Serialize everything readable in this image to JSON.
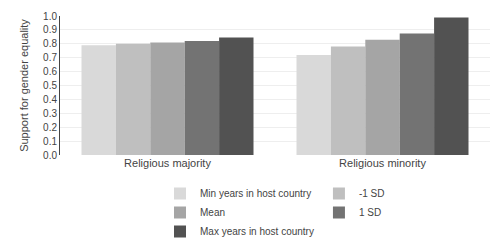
{
  "chart_data": {
    "type": "bar",
    "categories": [
      "Religious majority",
      "Religious minority"
    ],
    "series": [
      {
        "name": "Min years in host country",
        "color": "#d9d9d9",
        "values": [
          0.79,
          0.72
        ]
      },
      {
        "name": "-1 SD",
        "color": "#bfbfbf",
        "values": [
          0.8,
          0.78
        ]
      },
      {
        "name": "Mean",
        "color": "#a5a5a5",
        "values": [
          0.81,
          0.83
        ]
      },
      {
        "name": "1 SD",
        "color": "#737373",
        "values": [
          0.82,
          0.875
        ]
      },
      {
        "name": "Max years in host country",
        "color": "#525252",
        "values": [
          0.845,
          0.99
        ]
      }
    ],
    "ylabel": "Support for gender equality",
    "ylim": [
      0.0,
      1.0
    ],
    "yticks": [
      {
        "value": 0.0,
        "label": "0.0"
      },
      0.1,
      0.2,
      0.3,
      0.4,
      0.5,
      0.6,
      0.7,
      0.8,
      0.9,
      {
        "value": 1.0,
        "label": "1.0"
      }
    ],
    "grid": true,
    "legend": "bottom"
  }
}
